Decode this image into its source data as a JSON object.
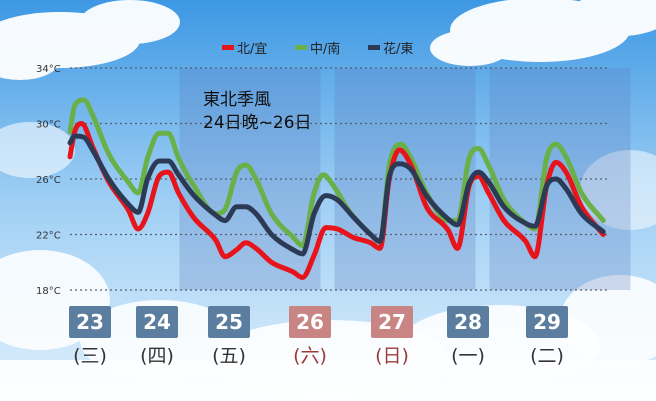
{
  "legend": [
    {
      "label": "北/宜",
      "color": "#e8141b"
    },
    {
      "label": "中/南",
      "color": "#6ab048"
    },
    {
      "label": "花/東",
      "color": "#2d3a55"
    }
  ],
  "annotation": {
    "line1": "東北季風",
    "line2": "24日晚~26日"
  },
  "days": [
    {
      "date": "23",
      "weekday": "(三)",
      "color": "#5b7ea0",
      "text_color": "#333333"
    },
    {
      "date": "24",
      "weekday": "(四)",
      "color": "#5b7ea0",
      "text_color": "#333333"
    },
    {
      "date": "25",
      "weekday": "(五)",
      "color": "#5b7ea0",
      "text_color": "#333333"
    },
    {
      "date": "26",
      "weekday": "(六)",
      "color": "#c98583",
      "text_color": "#9b3b39"
    },
    {
      "date": "27",
      "weekday": "(日)",
      "color": "#c98583",
      "text_color": "#9b3b39"
    },
    {
      "date": "28",
      "weekday": "(一)",
      "color": "#5b7ea0",
      "text_color": "#333333"
    },
    {
      "date": "29",
      "weekday": "(二)",
      "color": "#5b7ea0",
      "text_color": "#333333"
    }
  ],
  "chart_data": {
    "type": "line",
    "title": "",
    "ylabel": "",
    "xlabel": "",
    "y_ticks": [
      "34°C",
      "30°C",
      "26°C",
      "22°C",
      "18°C"
    ],
    "ylim": [
      18,
      34
    ],
    "x_unit": "day index (0 = 23日 00:00)",
    "xlim": [
      0,
      7
    ],
    "grid": "horizontal dotted",
    "shaded_days": [
      1,
      3,
      5
    ],
    "series": [
      {
        "name": "北/宜",
        "color": "#e8141b",
        "x": [
          0,
          0.06,
          0.15,
          0.3,
          0.5,
          0.75,
          0.88,
          1.0,
          1.15,
          1.27,
          1.4,
          1.6,
          1.88,
          2.0,
          2.15,
          2.27,
          2.4,
          2.6,
          2.88,
          3.0,
          3.15,
          3.3,
          3.45,
          3.65,
          3.88,
          4.0,
          4.12,
          4.25,
          4.4,
          4.6,
          4.88,
          5.0,
          5.15,
          5.27,
          5.4,
          5.6,
          5.88,
          6.0,
          6.15,
          6.27,
          6.4,
          6.6,
          6.88
        ],
        "y": [
          27.6,
          29.4,
          30.0,
          28.2,
          25.8,
          23.8,
          22.4,
          23.5,
          26.2,
          26.5,
          25.0,
          23.2,
          21.6,
          20.4,
          20.9,
          21.4,
          21.0,
          20.0,
          19.3,
          18.9,
          20.5,
          22.5,
          22.4,
          21.8,
          21.4,
          21.0,
          26.0,
          28.1,
          27.0,
          24.0,
          22.3,
          21.0,
          25.5,
          26.2,
          25.0,
          23.0,
          21.5,
          20.4,
          25.5,
          27.2,
          26.5,
          24.0,
          22.0
        ]
      },
      {
        "name": "中/南",
        "color": "#6ab048",
        "x": [
          0,
          0.06,
          0.18,
          0.3,
          0.5,
          0.75,
          0.88,
          1.0,
          1.15,
          1.27,
          1.4,
          1.6,
          1.88,
          2.0,
          2.15,
          2.27,
          2.4,
          2.6,
          2.88,
          3.0,
          3.15,
          3.27,
          3.4,
          3.6,
          3.88,
          4.0,
          4.12,
          4.27,
          4.4,
          4.6,
          4.88,
          5.0,
          5.15,
          5.27,
          5.4,
          5.6,
          5.88,
          6.0,
          6.15,
          6.27,
          6.4,
          6.6,
          6.88
        ],
        "y": [
          29.4,
          31.3,
          31.7,
          30.5,
          27.8,
          25.8,
          25.0,
          27.5,
          29.3,
          29.3,
          27.5,
          25.5,
          23.5,
          23.8,
          26.5,
          27.0,
          26.0,
          23.5,
          21.8,
          21.2,
          25.0,
          26.3,
          25.5,
          23.7,
          22.0,
          21.5,
          27.0,
          28.5,
          27.5,
          25.0,
          23.0,
          23.0,
          27.5,
          28.2,
          27.0,
          24.5,
          22.8,
          22.4,
          27.5,
          28.5,
          27.6,
          25.0,
          23.0
        ]
      },
      {
        "name": "花/東",
        "color": "#2d3a55",
        "x": [
          0,
          0.06,
          0.18,
          0.3,
          0.5,
          0.75,
          0.88,
          1.0,
          1.15,
          1.27,
          1.4,
          1.6,
          1.88,
          2.0,
          2.15,
          2.27,
          2.4,
          2.6,
          2.88,
          3.0,
          3.15,
          3.3,
          3.45,
          3.65,
          3.88,
          4.0,
          4.12,
          4.25,
          4.4,
          4.6,
          4.88,
          5.0,
          5.15,
          5.27,
          5.4,
          5.6,
          5.88,
          6.0,
          6.15,
          6.27,
          6.4,
          6.6,
          6.88
        ],
        "y": [
          28.6,
          29.1,
          29.0,
          28.0,
          26.0,
          24.2,
          23.6,
          26.0,
          27.3,
          27.3,
          26.3,
          24.8,
          23.4,
          23.0,
          24.0,
          24.0,
          23.5,
          22.0,
          20.9,
          20.6,
          23.5,
          24.8,
          24.5,
          23.3,
          22.0,
          21.5,
          26.2,
          27.1,
          26.7,
          24.8,
          23.1,
          22.7,
          25.7,
          26.5,
          25.8,
          24.0,
          22.8,
          22.6,
          25.5,
          26.0,
          25.3,
          23.5,
          22.2
        ]
      }
    ]
  }
}
